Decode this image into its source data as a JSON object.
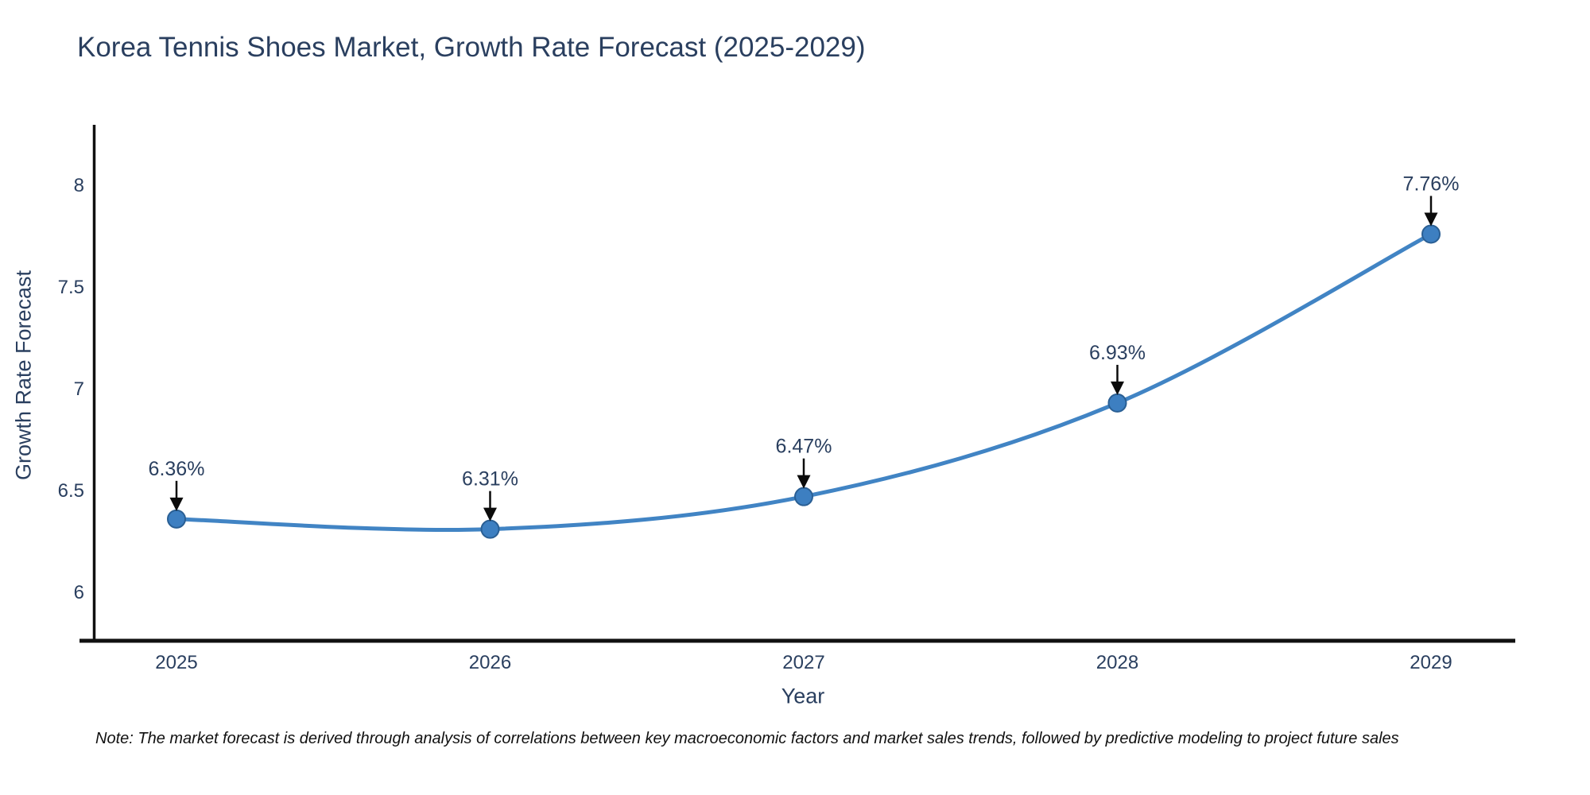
{
  "title": "Korea Tennis Shoes Market, Growth Rate Forecast (2025-2029)",
  "note": "Note: The market forecast is derived through analysis of correlations between key macroeconomic factors and market sales trends, followed by predictive modeling to project future sales",
  "chart_data": {
    "type": "line",
    "line_shape": "spline",
    "title": "Korea Tennis Shoes Market, Growth Rate Forecast (2025-2029)",
    "xlabel": "Year",
    "ylabel": "Growth Rate Forecast",
    "x": [
      2025,
      2026,
      2027,
      2028,
      2029
    ],
    "values": [
      6.36,
      6.31,
      6.47,
      6.93,
      7.76
    ],
    "point_labels": [
      "6.36%",
      "6.31%",
      "6.47%",
      "6.93%",
      "7.76%"
    ],
    "yticks": [
      6,
      6.5,
      7,
      7.5,
      8
    ],
    "ylim": [
      5.76,
      8.28
    ],
    "grid": false,
    "legend": "none",
    "annotations": "value labels with downward arrows above each point",
    "colors": {
      "line": "#4184c4",
      "marker": "#3d7fc1",
      "marker_border": "#2a5f94",
      "text": "#2a3f5f",
      "axis": "#111111",
      "arrow": "#0b0b0b",
      "background": "#ffffff"
    }
  }
}
